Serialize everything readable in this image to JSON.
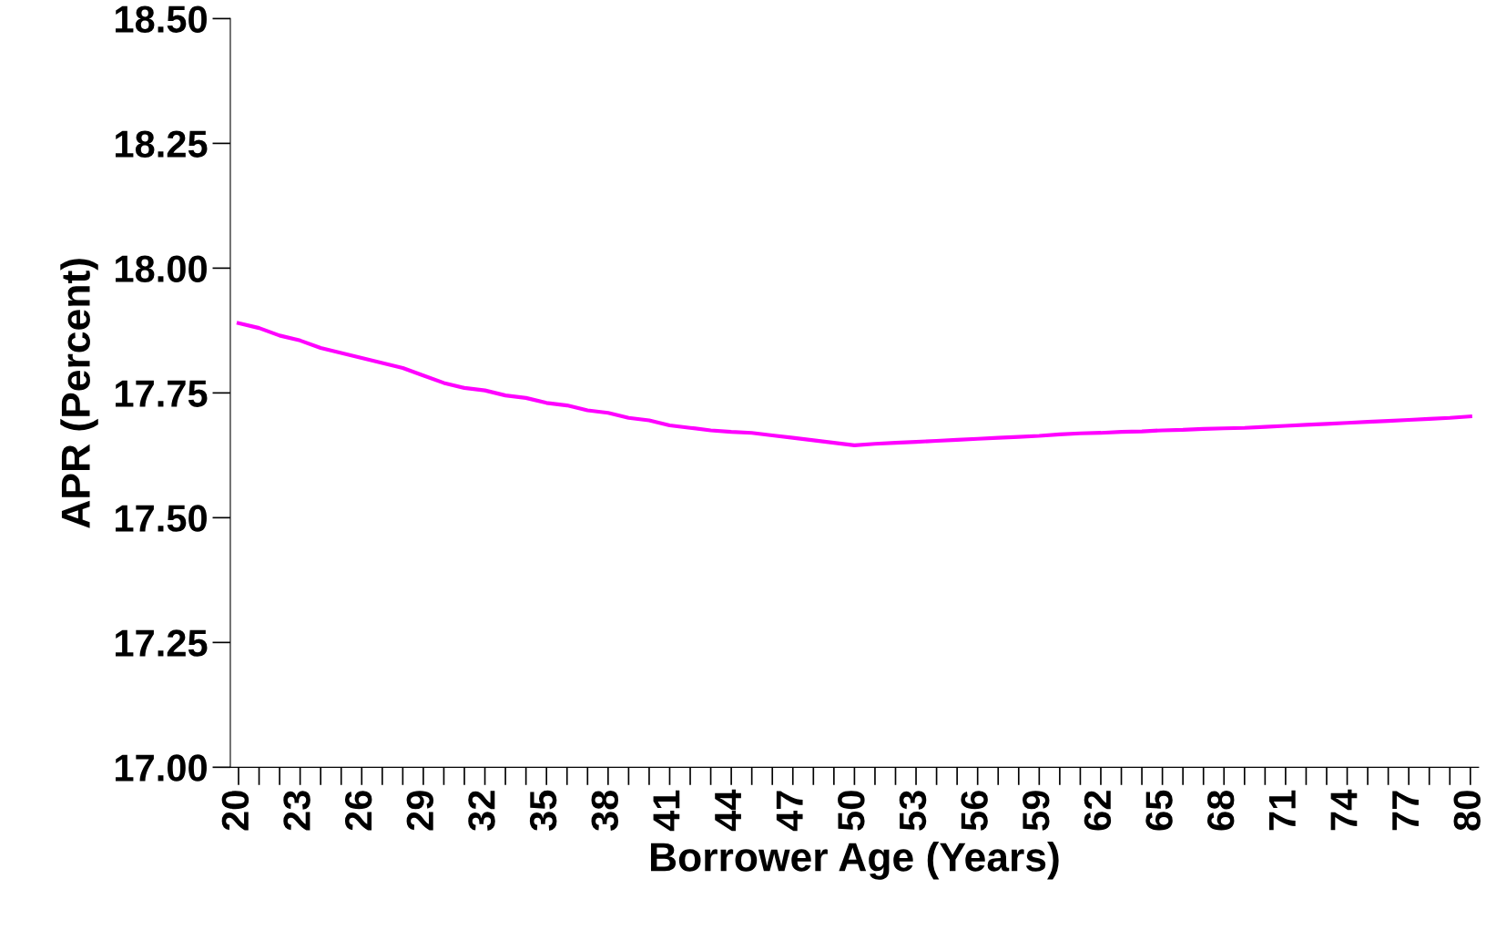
{
  "chart_data": {
    "type": "line",
    "xlabel": "Borrower Age (Years)",
    "ylabel": "APR (Percent)",
    "categories": [
      "20",
      null,
      null,
      "23",
      null,
      null,
      "26",
      null,
      null,
      "29",
      null,
      null,
      "32",
      null,
      null,
      "35",
      null,
      null,
      "38",
      null,
      null,
      "41",
      null,
      null,
      "44",
      null,
      null,
      "47",
      null,
      null,
      "50",
      null,
      null,
      "53",
      null,
      null,
      "56",
      null,
      null,
      "59",
      null,
      null,
      "62",
      null,
      null,
      "65",
      null,
      null,
      "68",
      null,
      null,
      "71",
      null,
      null,
      "74",
      null,
      null,
      "77",
      null,
      null,
      "80"
    ],
    "series": [
      {
        "color": "#ff00ff",
        "values": [
          17.89,
          17.88,
          17.865,
          17.855,
          17.84,
          17.83,
          17.82,
          17.81,
          17.8,
          17.785,
          17.77,
          17.76,
          17.755,
          17.745,
          17.74,
          17.73,
          17.725,
          17.715,
          17.71,
          17.7,
          17.695,
          17.685,
          17.68,
          17.675,
          17.672,
          17.67,
          17.665,
          17.66,
          17.655,
          17.65,
          17.645,
          17.648,
          17.65,
          17.652,
          17.654,
          17.656,
          17.658,
          17.66,
          17.662,
          17.664,
          17.667,
          17.669,
          17.67,
          17.672,
          17.673,
          17.675,
          17.676,
          17.678,
          17.679,
          17.68,
          17.682,
          17.684,
          17.686,
          17.688,
          17.69,
          17.692,
          17.694,
          17.696,
          17.698,
          17.7,
          17.703
        ]
      }
    ],
    "ylim": [
      17.0,
      18.5
    ],
    "yticks": [
      {
        "value": 17.0,
        "label": "17.00"
      },
      {
        "value": 17.25,
        "label": "17.25"
      },
      {
        "value": 17.5,
        "label": "17.50"
      },
      {
        "value": 17.75,
        "label": "17.75"
      },
      {
        "value": 18.0,
        "label": "18.00"
      },
      {
        "value": 18.25,
        "label": "18.25"
      },
      {
        "value": 18.5,
        "label": "18.50"
      }
    ],
    "grid": false,
    "marker": "none",
    "line_style": "solid"
  }
}
